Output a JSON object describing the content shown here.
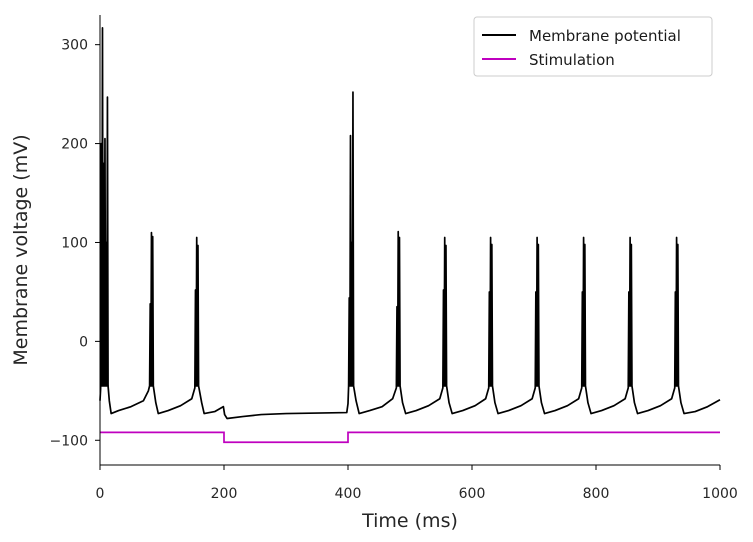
{
  "chart_data": {
    "type": "line",
    "title": "",
    "xlabel": "Time (ms)",
    "ylabel": "Membrane voltage (mV)",
    "xlim": [
      0,
      1000
    ],
    "ylim": [
      -125,
      330
    ],
    "x_ticks": [
      0,
      200,
      400,
      600,
      800,
      1000
    ],
    "y_ticks": [
      -100,
      0,
      100,
      200,
      300
    ],
    "x_tick_labels": [
      "0",
      "200",
      "400",
      "600",
      "800",
      "1000"
    ],
    "y_tick_labels": [
      "−100",
      "0",
      "100",
      "200",
      "300"
    ],
    "grid": false,
    "legend_position": "top-right",
    "series": [
      {
        "name": "Membrane potential",
        "color": "#000000",
        "points": [
          [
            0,
            -60
          ],
          [
            1,
            -48
          ],
          [
            2,
            200
          ],
          [
            3,
            -45
          ],
          [
            4,
            317
          ],
          [
            5,
            -45
          ],
          [
            6,
            180
          ],
          [
            7,
            -45
          ],
          [
            8,
            205
          ],
          [
            9,
            -45
          ],
          [
            10,
            100
          ],
          [
            11,
            -45
          ],
          [
            12,
            247
          ],
          [
            13,
            -45
          ],
          [
            15,
            -60
          ],
          [
            18,
            -73
          ],
          [
            30,
            -70
          ],
          [
            50,
            -66
          ],
          [
            70,
            -60
          ],
          [
            78,
            -50
          ],
          [
            80,
            -45
          ],
          [
            81,
            38
          ],
          [
            82,
            -45
          ],
          [
            83,
            110
          ],
          [
            84,
            -45
          ],
          [
            85,
            106
          ],
          [
            86,
            -45
          ],
          [
            90,
            -62
          ],
          [
            94,
            -73
          ],
          [
            110,
            -70
          ],
          [
            130,
            -65
          ],
          [
            148,
            -58
          ],
          [
            153,
            -47
          ],
          [
            154,
            52
          ],
          [
            155,
            -45
          ],
          [
            156,
            105
          ],
          [
            157,
            -45
          ],
          [
            158,
            97
          ],
          [
            159,
            -45
          ],
          [
            164,
            -62
          ],
          [
            168,
            -73
          ],
          [
            185,
            -71
          ],
          [
            199,
            -66
          ],
          [
            201,
            -74
          ],
          [
            205,
            -78
          ],
          [
            230,
            -76
          ],
          [
            260,
            -74
          ],
          [
            300,
            -73
          ],
          [
            350,
            -72.5
          ],
          [
            398,
            -72
          ],
          [
            400,
            -63
          ],
          [
            401,
            -45
          ],
          [
            402,
            44
          ],
          [
            403,
            -45
          ],
          [
            404,
            208
          ],
          [
            405,
            -45
          ],
          [
            406,
            100
          ],
          [
            407,
            -45
          ],
          [
            408,
            252
          ],
          [
            409,
            -45
          ],
          [
            413,
            -60
          ],
          [
            418,
            -73
          ],
          [
            435,
            -70
          ],
          [
            455,
            -66
          ],
          [
            472,
            -58
          ],
          [
            478,
            -47
          ],
          [
            479,
            35
          ],
          [
            480,
            -45
          ],
          [
            481,
            111
          ],
          [
            482,
            -45
          ],
          [
            483,
            105
          ],
          [
            484,
            -45
          ],
          [
            488,
            -62
          ],
          [
            493,
            -73
          ],
          [
            510,
            -70
          ],
          [
            530,
            -65
          ],
          [
            548,
            -58
          ],
          [
            553,
            -47
          ],
          [
            554,
            52
          ],
          [
            555,
            -45
          ],
          [
            556,
            105
          ],
          [
            557,
            -45
          ],
          [
            558,
            97
          ],
          [
            559,
            -45
          ],
          [
            563,
            -62
          ],
          [
            568,
            -73
          ],
          [
            585,
            -70
          ],
          [
            605,
            -65
          ],
          [
            622,
            -58
          ],
          [
            627,
            -47
          ],
          [
            628,
            50
          ],
          [
            629,
            -45
          ],
          [
            630,
            105
          ],
          [
            631,
            -45
          ],
          [
            632,
            98
          ],
          [
            633,
            -45
          ],
          [
            637,
            -62
          ],
          [
            642,
            -73
          ],
          [
            659,
            -70
          ],
          [
            679,
            -65
          ],
          [
            697,
            -58
          ],
          [
            702,
            -47
          ],
          [
            703,
            50
          ],
          [
            704,
            -45
          ],
          [
            705,
            105
          ],
          [
            706,
            -45
          ],
          [
            707,
            98
          ],
          [
            708,
            -45
          ],
          [
            712,
            -62
          ],
          [
            717,
            -73
          ],
          [
            734,
            -70
          ],
          [
            754,
            -65
          ],
          [
            772,
            -58
          ],
          [
            777,
            -47
          ],
          [
            778,
            50
          ],
          [
            779,
            -45
          ],
          [
            780,
            105
          ],
          [
            781,
            -45
          ],
          [
            782,
            98
          ],
          [
            783,
            -45
          ],
          [
            787,
            -62
          ],
          [
            792,
            -73
          ],
          [
            809,
            -70
          ],
          [
            829,
            -65
          ],
          [
            847,
            -58
          ],
          [
            852,
            -47
          ],
          [
            853,
            50
          ],
          [
            854,
            -45
          ],
          [
            855,
            105
          ],
          [
            856,
            -45
          ],
          [
            857,
            98
          ],
          [
            858,
            -45
          ],
          [
            862,
            -62
          ],
          [
            867,
            -73
          ],
          [
            884,
            -70
          ],
          [
            904,
            -65
          ],
          [
            922,
            -58
          ],
          [
            927,
            -47
          ],
          [
            928,
            50
          ],
          [
            929,
            -45
          ],
          [
            930,
            105
          ],
          [
            931,
            -45
          ],
          [
            932,
            98
          ],
          [
            933,
            -45
          ],
          [
            937,
            -62
          ],
          [
            942,
            -73
          ],
          [
            960,
            -71
          ],
          [
            980,
            -66
          ],
          [
            1000,
            -59
          ]
        ]
      },
      {
        "name": "Stimulation",
        "color": "#bf00bf",
        "points": [
          [
            0,
            -92
          ],
          [
            200,
            -92
          ],
          [
            200,
            -102
          ],
          [
            400,
            -102
          ],
          [
            400,
            -92
          ],
          [
            1000,
            -92
          ]
        ]
      }
    ]
  }
}
